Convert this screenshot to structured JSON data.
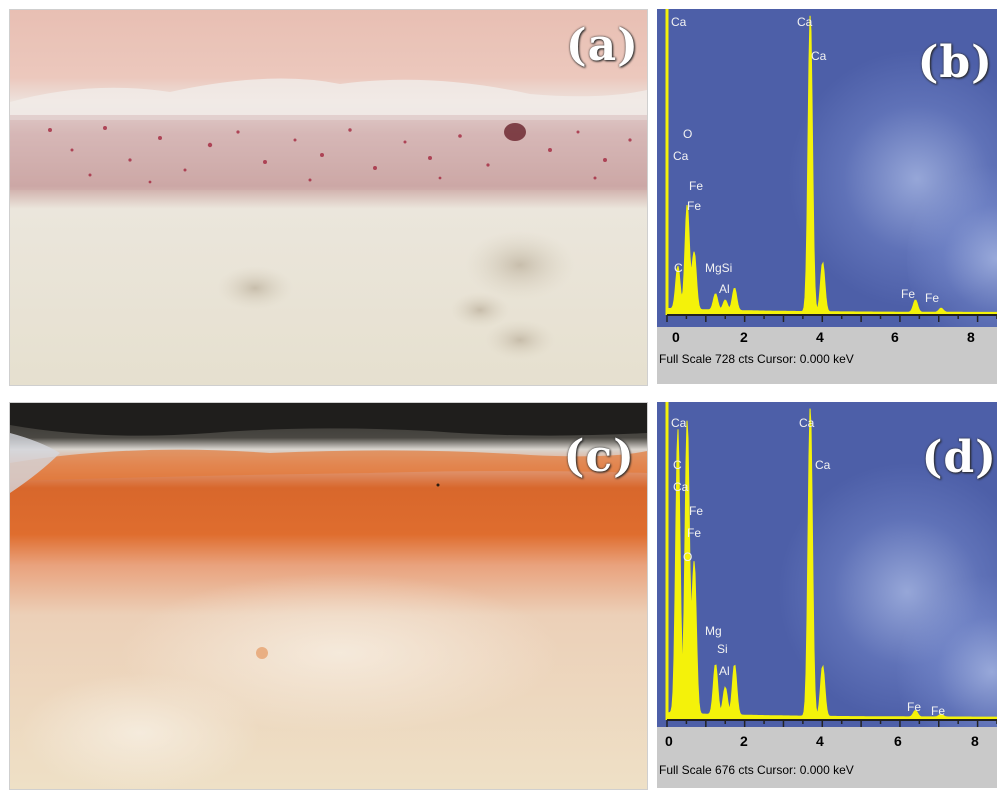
{
  "panels": {
    "a": {
      "label": "(a)"
    },
    "b": {
      "label": "(b)"
    },
    "c": {
      "label": "(c)"
    },
    "d": {
      "label": "(d)"
    }
  },
  "colors": {
    "spectrum_bg": "#4d5fa8",
    "peak": "#f4f20a",
    "footer_bg": "#c9c9c9"
  },
  "chart_data": [
    {
      "panel": "b",
      "type": "line",
      "xlabel": "",
      "ylabel": "",
      "x_ticks": [
        "0",
        "2",
        "4",
        "6",
        "8"
      ],
      "xlim": [
        0,
        8.5
      ],
      "footer": "Full Scale 728 cts  Cursor: 0.000 keV",
      "peaks": [
        {
          "x": 0.28,
          "y": 105
        },
        {
          "x": 0.52,
          "y": 255
        },
        {
          "x": 0.7,
          "y": 140
        },
        {
          "x": 1.25,
          "y": 40
        },
        {
          "x": 1.5,
          "y": 25
        },
        {
          "x": 1.74,
          "y": 55
        },
        {
          "x": 3.69,
          "y": 728
        },
        {
          "x": 4.01,
          "y": 120
        },
        {
          "x": 6.4,
          "y": 30
        },
        {
          "x": 7.06,
          "y": 10
        }
      ],
      "element_labels": [
        "Ca",
        "O",
        "Ca",
        "Fe",
        "Fe",
        "C",
        "MgSi",
        "Al",
        "Ca",
        "Ca",
        "Fe",
        "Fe"
      ]
    },
    {
      "panel": "d",
      "type": "line",
      "xlabel": "",
      "ylabel": "",
      "x_ticks": [
        "0",
        "2",
        "4",
        "6",
        "8"
      ],
      "xlim": [
        0,
        8.5
      ],
      "footer": "Full Scale 676 cts  Cursor: 0.000 keV",
      "peaks": [
        {
          "x": 0.28,
          "y": 620
        },
        {
          "x": 0.52,
          "y": 640
        },
        {
          "x": 0.7,
          "y": 330
        },
        {
          "x": 1.25,
          "y": 110
        },
        {
          "x": 1.5,
          "y": 60
        },
        {
          "x": 1.74,
          "y": 110
        },
        {
          "x": 3.69,
          "y": 676
        },
        {
          "x": 4.01,
          "y": 110
        },
        {
          "x": 6.4,
          "y": 14
        },
        {
          "x": 7.06,
          "y": 6
        }
      ],
      "element_labels": [
        "Ca",
        "C",
        "Ca",
        "Fe",
        "Fe",
        "O",
        "Mg",
        "Si",
        "Al",
        "Ca",
        "Ca",
        "Fe",
        "Fe"
      ]
    }
  ]
}
